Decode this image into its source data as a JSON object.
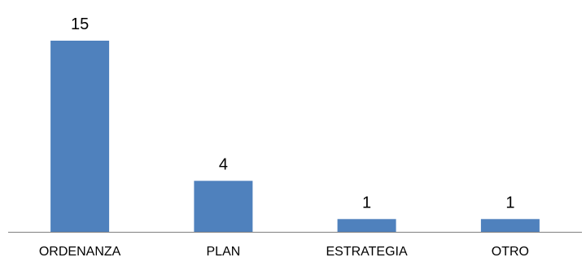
{
  "chart_data": {
    "type": "bar",
    "categories": [
      "ORDENANZA",
      "PLAN",
      "ESTRATEGIA",
      "OTRO"
    ],
    "values": [
      15,
      4,
      1,
      1
    ],
    "data_labels": [
      "15",
      "4",
      "1",
      "1"
    ],
    "title": "",
    "xlabel": "",
    "ylabel": "",
    "ylim": [
      0,
      15
    ],
    "grid": false,
    "legend": "none",
    "bar_color": "#4f81bd",
    "axis_color": "#808080"
  }
}
